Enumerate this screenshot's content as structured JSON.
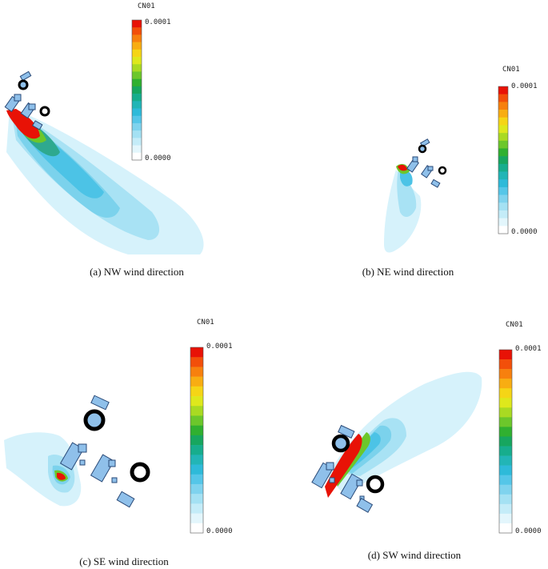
{
  "colorbar": {
    "title": "CN01",
    "max_label": "0.0001",
    "min_label": "0.0000",
    "colors": [
      "#ffffff",
      "#e3f6fc",
      "#c4ecf8",
      "#a4e1f3",
      "#7fd3ee",
      "#55c6e8",
      "#2ebad9",
      "#22b5b6",
      "#17ad8d",
      "#17a65f",
      "#30b030",
      "#6cc72b",
      "#a9da22",
      "#dee81c",
      "#f5d516",
      "#f8ad12",
      "#f7800e",
      "#f24f0a",
      "#e81206"
    ]
  },
  "panels": [
    {
      "caption": "(a) NW wind direction"
    },
    {
      "caption": "(b) NE wind direction"
    },
    {
      "caption": "(c) SE wind direction"
    },
    {
      "caption": "(d) SW wind direction"
    }
  ]
}
